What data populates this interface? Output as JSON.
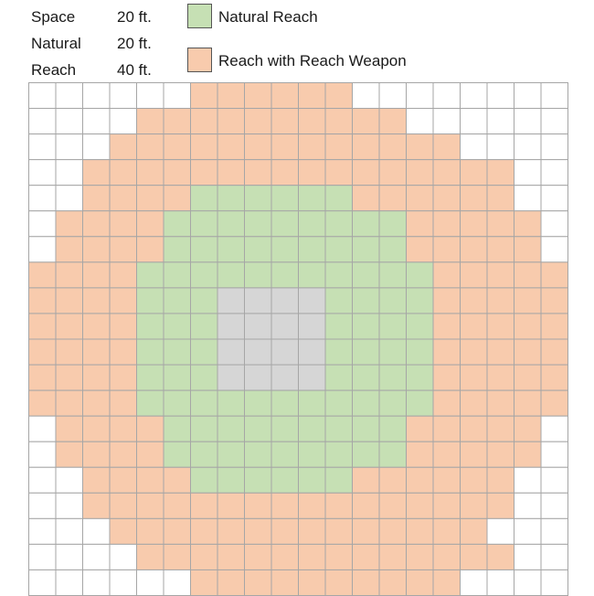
{
  "info": [
    {
      "label": "Space",
      "value": "20 ft."
    },
    {
      "label": "Natural",
      "value": "20 ft."
    },
    {
      "label": "Reach",
      "value": "40 ft."
    }
  ],
  "legend": [
    {
      "label": "Natural Reach",
      "color": "#c6e0b4"
    },
    {
      "label": "Reach with Reach Weapon",
      "color": "#f8cbad"
    }
  ],
  "colors": {
    "space": "#d6d6d6",
    "natural": "#c6e0b4",
    "reach": "#f8cbad",
    "empty": "#ffffff",
    "gridline": "#a6a6a6"
  },
  "grid": {
    "rows": 20,
    "cols": 20,
    "cells": [
      "......RRRRRR........",
      "....RRRRRRRRRR......",
      "...RRRRRRRRRRRRR....",
      "..RRRRRRRRRRRRRRRR..",
      "..RRRRNNNNNNRRRRRR..",
      ".RRRRNNNNNNNNNRRRRR.",
      ".RRRRNNNNNNNNNRRRRR.",
      "RRRRNNNNNNNNNNNRRRRR",
      "RRRRNNNSSSSNNNNRRRRR",
      "RRRRNNNSSSSNNNNRRRRR",
      "RRRRNNNSSSSNNNNRRRRR",
      "RRRRNNNSSSSNNNNRRRRR",
      "RRRRNNNNNNNNNNNRRRRR",
      ".RRRRNNNNNNNNNRRRRR.",
      ".RRRRNNNNNNNNNRRRRR.",
      "..RRRRNNNNNNRRRRRR..",
      "..RRRRRRRRRRRRRRRR..",
      "...RRRRRRRRRRRRRR...",
      "....RRRRRRRRRRRRRR..",
      "......RRRRRRRRRR...."
    ]
  }
}
